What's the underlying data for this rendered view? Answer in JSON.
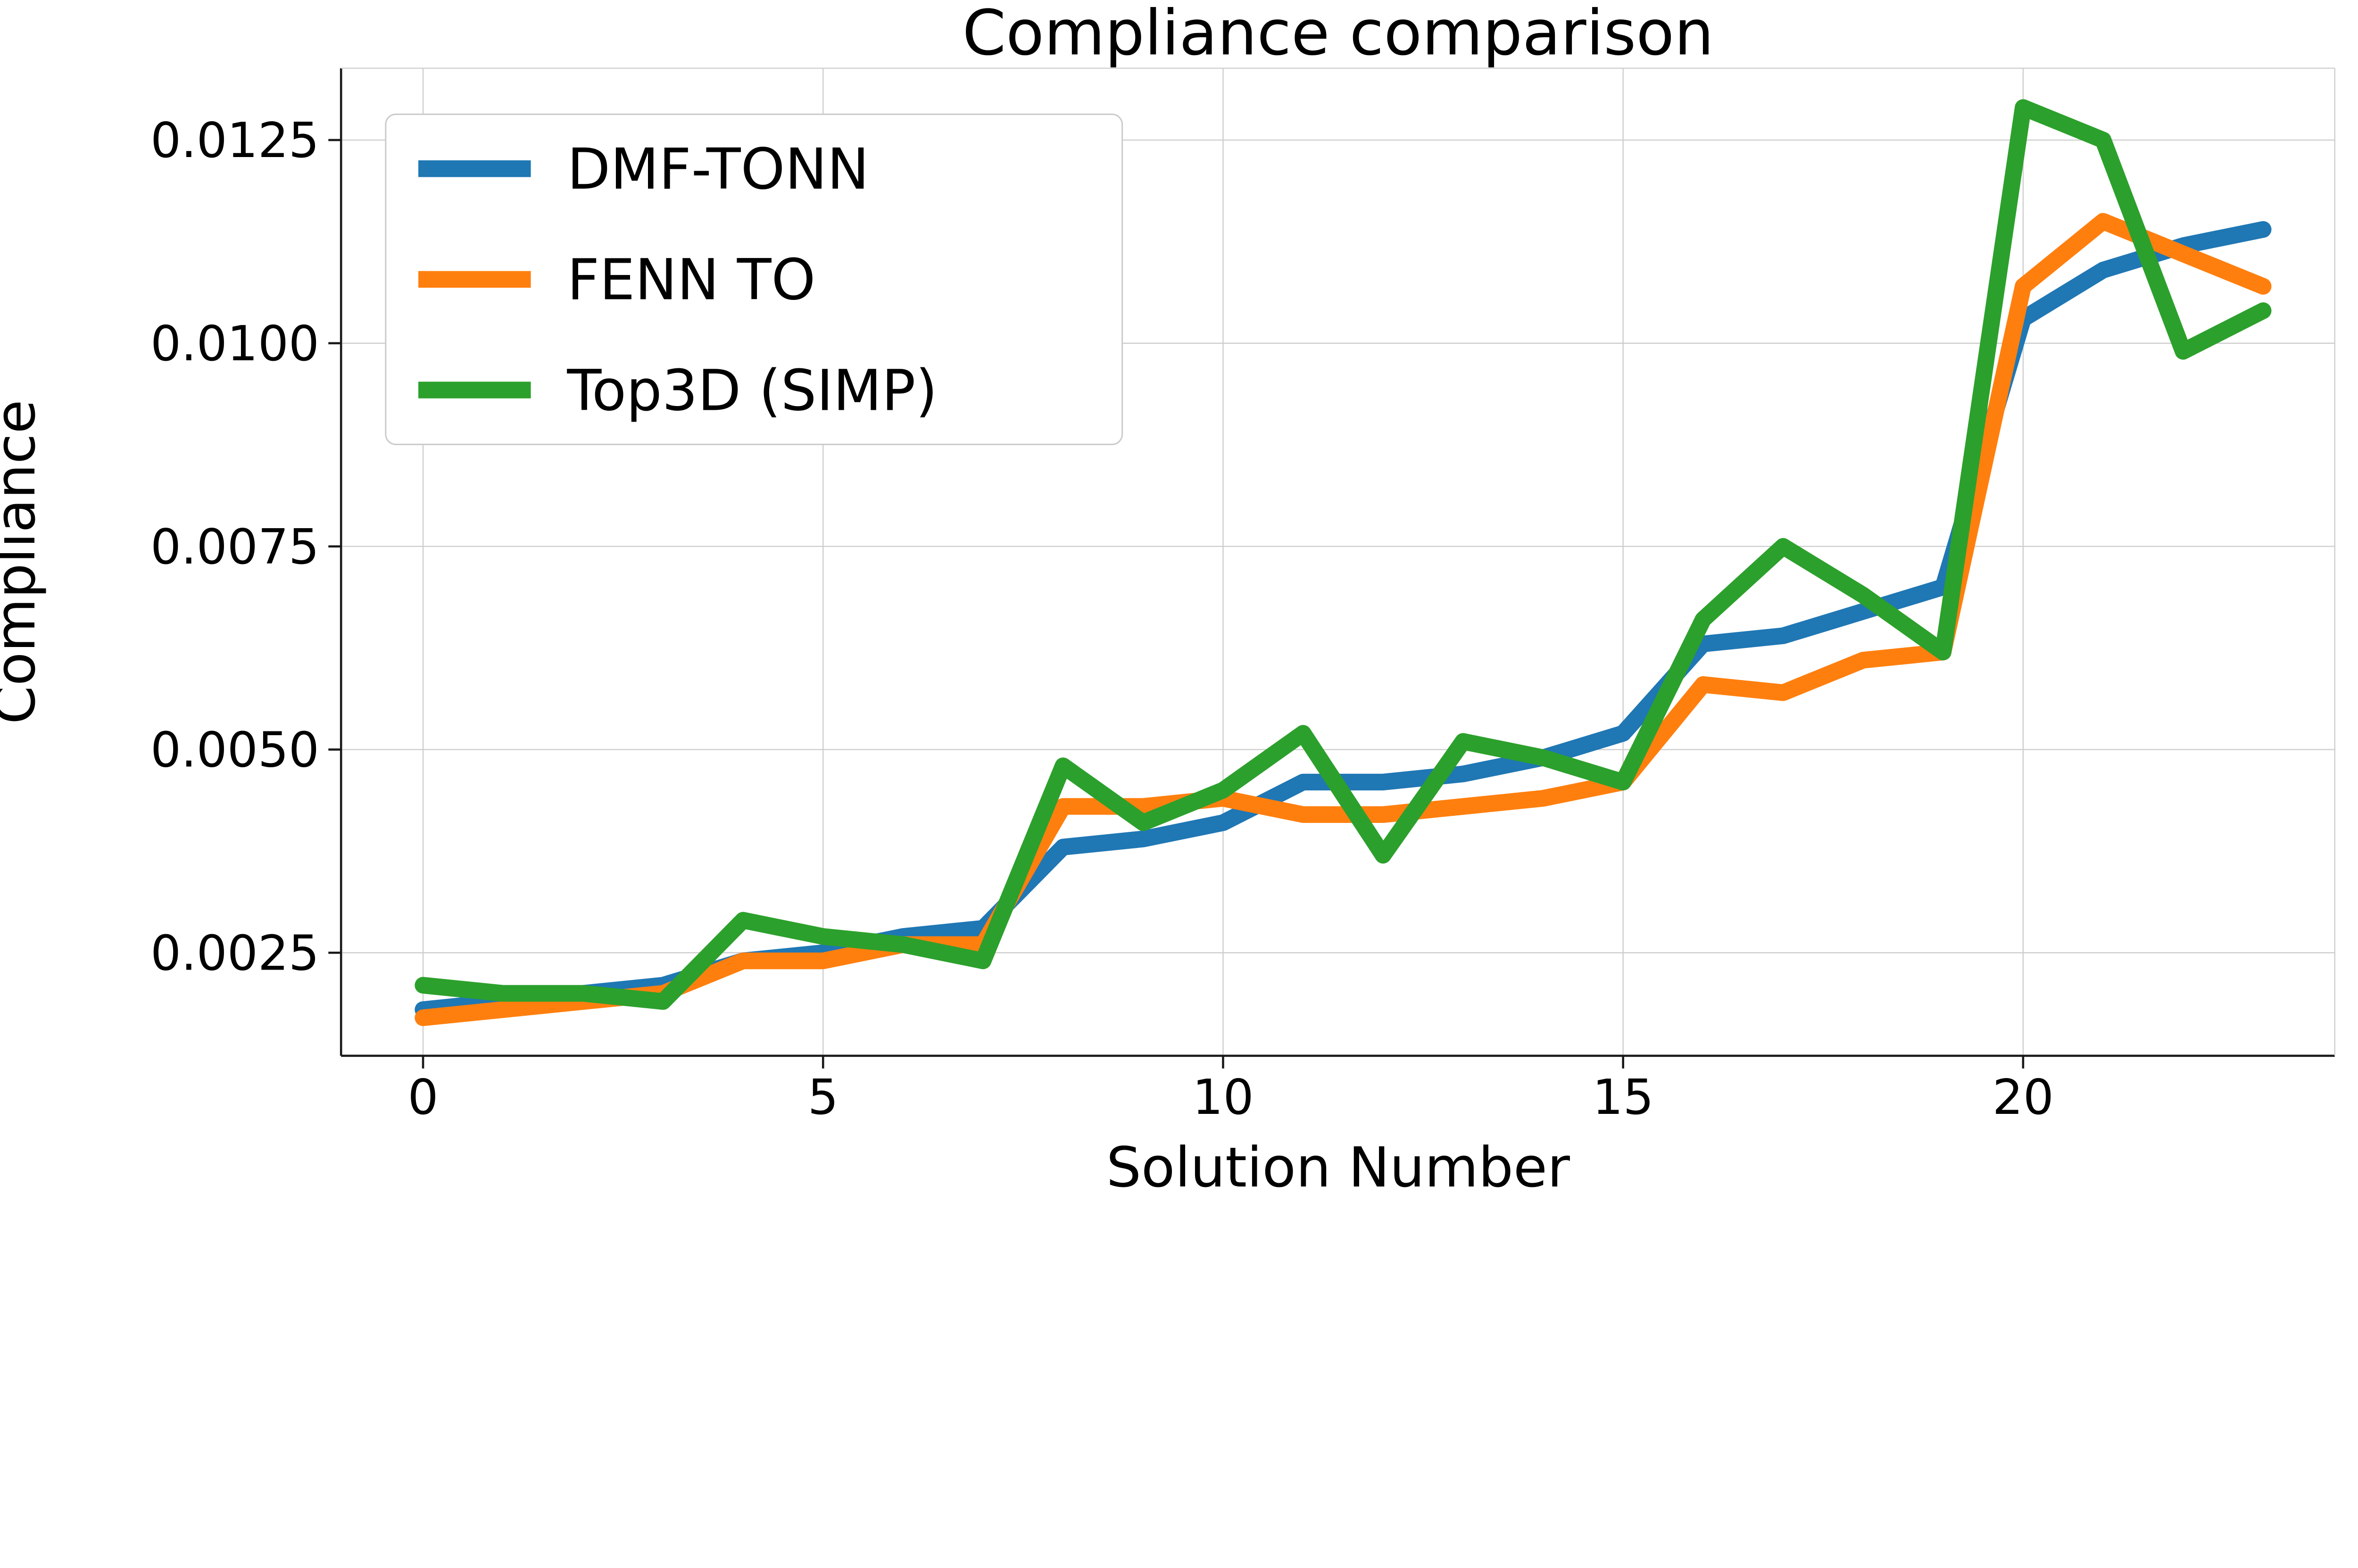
{
  "figure": {
    "title": "Compliance comparison",
    "xlabel": "Solution Number",
    "ylabel": "Compliance"
  },
  "colors": {
    "background": "#ffffff",
    "grid": "#cccccc",
    "spine_dark": "#1a1a1a",
    "spine_light": "#cccccc",
    "text": "#000000",
    "legend_border": "#cccccc",
    "legend_background": "#ffffff"
  },
  "legend": {
    "position": "upper left",
    "entries": [
      {
        "label": "DMF-TONN",
        "color": "#1f77b4"
      },
      {
        "label": "FENN TO",
        "color": "#ff7f0e"
      },
      {
        "label": "Top3D (SIMP)",
        "color": "#2ca02c"
      }
    ]
  },
  "chart_data": {
    "type": "line",
    "title": "Compliance comparison",
    "xlabel": "Solution Number",
    "ylabel": "Compliance",
    "grid": true,
    "legend_position": "upper left",
    "xlim": [
      -1.0,
      23.9
    ],
    "ylim": [
      0.0012,
      0.0134
    ],
    "x_ticks": [
      0,
      5,
      10,
      15,
      20
    ],
    "x_tick_labels": [
      "0",
      "5",
      "10",
      "15",
      "20"
    ],
    "y_ticks": [
      0.0025,
      0.005,
      0.0075,
      0.01,
      0.0125
    ],
    "y_tick_labels": [
      "0.0025",
      "0.0050",
      "0.0075",
      "0.0100",
      "0.0125"
    ],
    "x": [
      0,
      1,
      2,
      3,
      4,
      5,
      6,
      7,
      8,
      9,
      10,
      11,
      12,
      13,
      14,
      15,
      16,
      17,
      18,
      19,
      20,
      21,
      22,
      23
    ],
    "series": [
      {
        "name": "DMF-TONN",
        "color": "#1f77b4",
        "values": [
          0.0018,
          0.0019,
          0.002,
          0.0021,
          0.0024,
          0.0025,
          0.0027,
          0.0028,
          0.0038,
          0.0039,
          0.0041,
          0.0046,
          0.0046,
          0.0047,
          0.0049,
          0.0052,
          0.0063,
          0.0064,
          0.0067,
          0.007,
          0.0103,
          0.0109,
          0.0112,
          0.0114
        ]
      },
      {
        "name": "FENN TO",
        "color": "#ff7f0e",
        "values": [
          0.0017,
          0.0018,
          0.0019,
          0.002,
          0.0024,
          0.0024,
          0.0026,
          0.0026,
          0.0043,
          0.0043,
          0.0044,
          0.0042,
          0.0042,
          0.0043,
          0.0044,
          0.0046,
          0.0058,
          0.0057,
          0.0061,
          0.0062,
          0.0107,
          0.0115,
          0.0111,
          0.0107
        ]
      },
      {
        "name": "Top3D (SIMP)",
        "color": "#2ca02c",
        "values": [
          0.0021,
          0.002,
          0.002,
          0.0019,
          0.0029,
          0.0027,
          0.0026,
          0.0024,
          0.0048,
          0.0041,
          0.0045,
          0.0052,
          0.0037,
          0.0051,
          0.0049,
          0.0046,
          0.0066,
          0.0075,
          0.0069,
          0.0062,
          0.0129,
          0.0125,
          0.0099,
          0.0104
        ]
      }
    ]
  }
}
